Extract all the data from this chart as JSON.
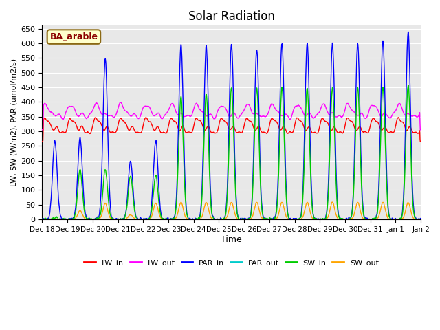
{
  "title": "Solar Radiation",
  "xlabel": "Time",
  "ylabel": "LW, SW (W/m2), PAR (umol/m2/s)",
  "ylim": [
    0,
    660
  ],
  "yticks": [
    0,
    50,
    100,
    150,
    200,
    250,
    300,
    350,
    400,
    450,
    500,
    550,
    600,
    650
  ],
  "x_tick_labels": [
    "Dec 18",
    "Dec 19",
    "Dec 20",
    "Dec 21",
    "Dec 22",
    "Dec 23",
    "Dec 24",
    "Dec 25",
    "Dec 26",
    "Dec 27",
    "Dec 28",
    "Dec 29",
    "Dec 30",
    "Dec 31",
    "Jan 1",
    "Jan 2"
  ],
  "annotation": "BA_arable",
  "annotation_color": "#8B0000",
  "annotation_bg": "#FFFFCC",
  "annotation_edge": "#8B6914",
  "series_colors": {
    "LW_in": "#FF0000",
    "LW_out": "#FF00FF",
    "PAR_in": "#0000FF",
    "PAR_out": "#00CCCC",
    "SW_in": "#00CC00",
    "SW_out": "#FFA500"
  },
  "bg_color": "#E8E8E8",
  "n_days": 15,
  "lw_base": 315,
  "lw_out_base": 365
}
